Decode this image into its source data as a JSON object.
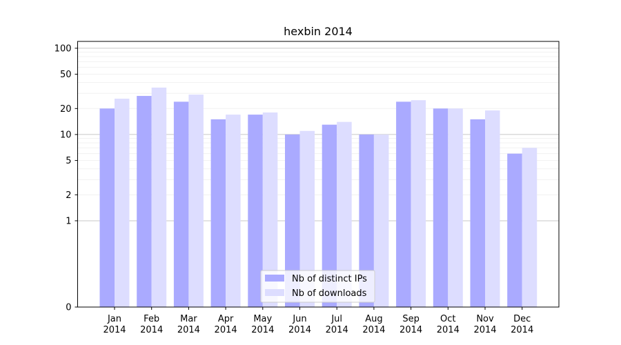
{
  "chart_data": {
    "type": "bar",
    "title": "hexbin 2014",
    "xlabel": "",
    "ylabel": "",
    "yscale": "symlog",
    "ylim": [
      0,
      120
    ],
    "yticks": [
      0,
      1,
      2,
      5,
      10,
      20,
      50,
      100
    ],
    "categories": [
      "Jan\n2014",
      "Feb\n2014",
      "Mar\n2014",
      "Apr\n2014",
      "May\n2014",
      "Jun\n2014",
      "Jul\n2014",
      "Aug\n2014",
      "Sep\n2014",
      "Oct\n2014",
      "Nov\n2014",
      "Dec\n2014"
    ],
    "series": [
      {
        "name": "Nb of distinct IPs",
        "color": "#aaaaff",
        "values": [
          20,
          28,
          24,
          15,
          17,
          10,
          13,
          10,
          24,
          20,
          15,
          6
        ]
      },
      {
        "name": "Nb of downloads",
        "color": "#ddddff",
        "values": [
          26,
          35,
          29,
          17,
          18,
          11,
          14,
          10,
          25,
          20,
          19,
          7
        ]
      }
    ],
    "legend": "lower-center",
    "grid": true
  }
}
